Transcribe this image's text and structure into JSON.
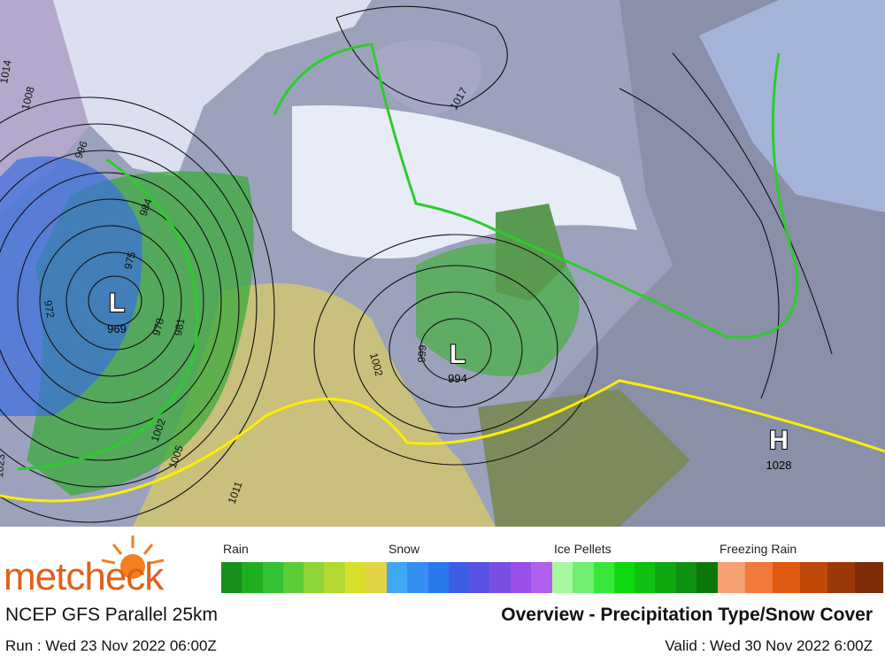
{
  "map": {
    "isobar_labels": [
      1014,
      1008,
      996,
      984,
      975,
      972,
      978,
      981,
      1002,
      999,
      1017,
      1002,
      1005,
      1011,
      1023
    ],
    "centers": [
      {
        "type": "L",
        "pressure": 969
      },
      {
        "type": "L",
        "pressure": 994
      },
      {
        "type": "H",
        "pressure": 1028
      }
    ]
  },
  "legend": [
    {
      "label": "Rain",
      "colors": [
        "#18901c",
        "#1fae1f",
        "#34c234",
        "#5ccc34",
        "#8cd43a",
        "#b4da32",
        "#d8df2c",
        "#e2d444"
      ]
    },
    {
      "label": "Snow",
      "colors": [
        "#40a8f4",
        "#3490f0",
        "#2a78ec",
        "#3c5ee4",
        "#5a52e2",
        "#7a50e4",
        "#9a50e8",
        "#b060ec"
      ]
    },
    {
      "label": "Ice Pellets",
      "colors": [
        "#a8f8a0",
        "#70f070",
        "#38e838",
        "#10d810",
        "#10c010",
        "#10a810",
        "#109010",
        "#0c780c"
      ]
    },
    {
      "label": "Freezing Rain",
      "colors": [
        "#f4a070",
        "#f07838",
        "#e05a10",
        "#c04808",
        "#9c3808",
        "#7c2c08"
      ]
    }
  ],
  "brand": "metcheck",
  "model": "NCEP GFS Parallel 25km",
  "title": "Overview - Precipitation Type/Snow Cover",
  "run": "Run : Wed 23 Nov 2022 06:00Z",
  "valid": "Valid : Wed 30 Nov 2022 6:00Z"
}
